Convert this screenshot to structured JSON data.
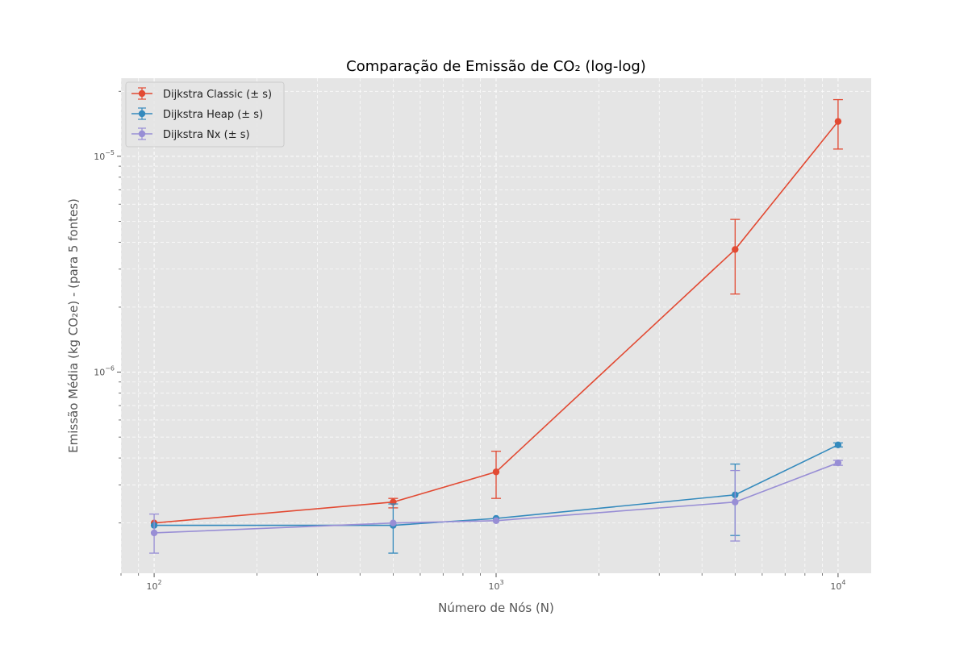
{
  "chart_data": {
    "type": "line",
    "title": "Comparação de Emissão de CO₂ (log-log)",
    "xlabel": "Número de Nós (N)",
    "ylabel": "Emissão Média (kg CO₂e) - (para 5 fontes)",
    "x_scale": "log",
    "y_scale": "log",
    "xlim": [
      80,
      12500
    ],
    "ylim": [
      1.17e-07,
      2.3e-05
    ],
    "grid": true,
    "grid_style": "dashed",
    "legend_position": "top-left",
    "background_color": "#E5E5E5",
    "x_ticks": [
      {
        "value": 100,
        "base": "10",
        "exp": "2"
      },
      {
        "value": 1000,
        "base": "10",
        "exp": "3"
      },
      {
        "value": 10000,
        "base": "10",
        "exp": "4"
      }
    ],
    "y_ticks": [
      {
        "value": 1e-06,
        "base": "10",
        "exp": "−6"
      },
      {
        "value": 1e-05,
        "base": "10",
        "exp": "−5"
      }
    ],
    "series": [
      {
        "name": "Dijkstra Classic (± s)",
        "color": "#E24A33",
        "x": [
          100,
          500,
          1000,
          5000,
          10000
        ],
        "y": [
          2e-07,
          2.5e-07,
          3.45e-07,
          3.7e-06,
          1.45e-05
        ],
        "err_low": [
          2e-07,
          2.35e-07,
          2.6e-07,
          2.3e-06,
          1.08e-05
        ],
        "err_high": [
          2e-07,
          2.6e-07,
          4.3e-07,
          5.1e-06,
          1.83e-05
        ]
      },
      {
        "name": "Dijkstra Heap (± s)",
        "color": "#348ABD",
        "x": [
          100,
          500,
          1000,
          5000,
          10000
        ],
        "y": [
          1.95e-07,
          1.95e-07,
          2.1e-07,
          2.7e-07,
          4.6e-07
        ],
        "err_low": [
          1.95e-07,
          1.45e-07,
          2.1e-07,
          1.75e-07,
          4.5e-07
        ],
        "err_high": [
          1.95e-07,
          2.45e-07,
          2.1e-07,
          3.75e-07,
          4.7e-07
        ]
      },
      {
        "name": "Dijkstra Nx (± s)",
        "color": "#988ED5",
        "x": [
          100,
          500,
          1000,
          5000,
          10000
        ],
        "y": [
          1.8e-07,
          2e-07,
          2.05e-07,
          2.5e-07,
          3.8e-07
        ],
        "err_low": [
          1.45e-07,
          2e-07,
          2.05e-07,
          1.65e-07,
          3.7e-07
        ],
        "err_high": [
          2.2e-07,
          2e-07,
          2.05e-07,
          3.5e-07,
          3.9e-07
        ]
      }
    ]
  }
}
